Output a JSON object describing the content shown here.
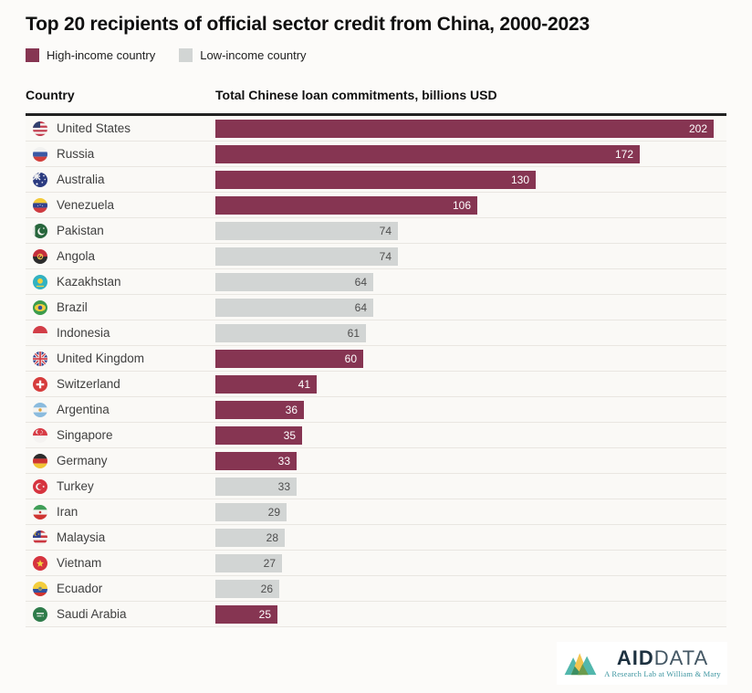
{
  "title": "Top 20 recipients of official sector credit from China, 2000-2023",
  "legend": [
    {
      "label": "High-income country",
      "color": "#863552",
      "group": "high"
    },
    {
      "label": "Low-income country",
      "color": "#d2d5d4",
      "group": "low"
    }
  ],
  "table": {
    "country_header": "Country",
    "value_header": "Total Chinese loan commitments, billions USD"
  },
  "chart_data": {
    "type": "bar",
    "orientation": "horizontal",
    "title": "Top 20 recipients of official sector credit from China, 2000-2023",
    "value_label": "Total Chinese loan commitments, billions USD",
    "xlim": [
      0,
      202
    ],
    "grid": false,
    "legend_position": "top",
    "series_colors": {
      "high": "#863552",
      "low": "#d2d5d4"
    },
    "value_text_colors": {
      "high": "#ffffff",
      "low": "#4d4d4d"
    },
    "rows": [
      {
        "country": "United States",
        "value": 202,
        "group": "high",
        "flag": "us"
      },
      {
        "country": "Russia",
        "value": 172,
        "group": "high",
        "flag": "ru"
      },
      {
        "country": "Australia",
        "value": 130,
        "group": "high",
        "flag": "au"
      },
      {
        "country": "Venezuela",
        "value": 106,
        "group": "high",
        "flag": "ve"
      },
      {
        "country": "Pakistan",
        "value": 74,
        "group": "low",
        "flag": "pk"
      },
      {
        "country": "Angola",
        "value": 74,
        "group": "low",
        "flag": "ao"
      },
      {
        "country": "Kazakhstan",
        "value": 64,
        "group": "low",
        "flag": "kz"
      },
      {
        "country": "Brazil",
        "value": 64,
        "group": "low",
        "flag": "br"
      },
      {
        "country": "Indonesia",
        "value": 61,
        "group": "low",
        "flag": "id"
      },
      {
        "country": "United Kingdom",
        "value": 60,
        "group": "high",
        "flag": "gb"
      },
      {
        "country": "Switzerland",
        "value": 41,
        "group": "high",
        "flag": "ch"
      },
      {
        "country": "Argentina",
        "value": 36,
        "group": "high",
        "flag": "ar"
      },
      {
        "country": "Singapore",
        "value": 35,
        "group": "high",
        "flag": "sg"
      },
      {
        "country": "Germany",
        "value": 33,
        "group": "high",
        "flag": "de"
      },
      {
        "country": "Turkey",
        "value": 33,
        "group": "low",
        "flag": "tr"
      },
      {
        "country": "Iran",
        "value": 29,
        "group": "low",
        "flag": "ir"
      },
      {
        "country": "Malaysia",
        "value": 28,
        "group": "low",
        "flag": "my"
      },
      {
        "country": "Vietnam",
        "value": 27,
        "group": "low",
        "flag": "vn"
      },
      {
        "country": "Ecuador",
        "value": 26,
        "group": "low",
        "flag": "ec"
      },
      {
        "country": "Saudi Arabia",
        "value": 25,
        "group": "high",
        "flag": "sa"
      }
    ]
  },
  "footer": {
    "brand_aid": "AID",
    "brand_data": "DATA",
    "tagline": "A Research Lab at William & Mary"
  }
}
